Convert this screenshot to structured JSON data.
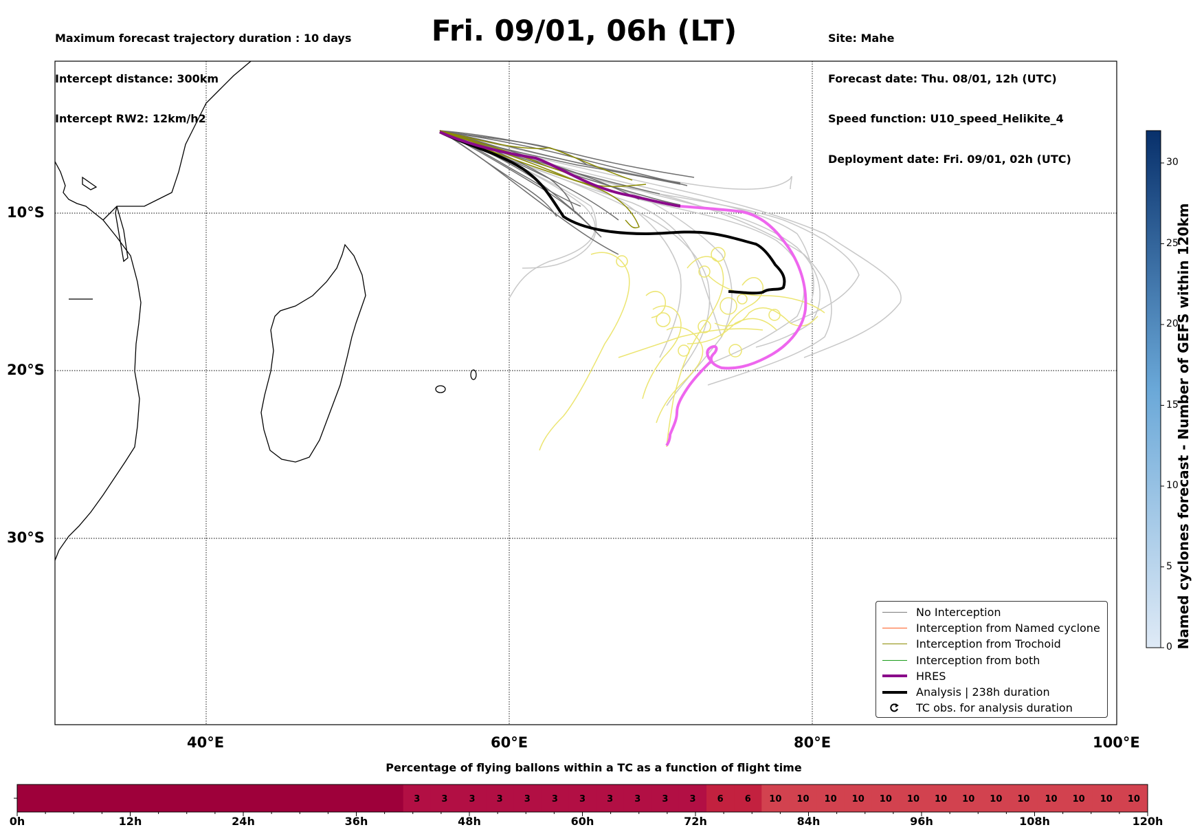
{
  "header": {
    "left_lines": [
      "Maximum forecast trajectory duration : 10 days",
      "Intercept distance: 300km",
      "Intercept RW2: 12km/h2"
    ],
    "title": "Fri. 09/01, 06h (LT)",
    "right_lines": [
      "Site: Mahe",
      "Forecast date: Thu. 08/01, 12h (UTC)",
      "Speed function: U10_speed_Helikite_4",
      "Deployment date: Fri. 09/01, 02h (UTC)"
    ]
  },
  "map": {
    "lat_labels": [
      "10°S",
      "20°S",
      "30°S"
    ],
    "lon_labels": [
      "40°E",
      "60°E",
      "80°E",
      "100°E"
    ]
  },
  "legend": {
    "items": [
      {
        "label": "No Interception",
        "color": "#7a7a7a",
        "kind": "line-thin"
      },
      {
        "label": "Interception from Named cyclone",
        "color": "#ff5a1f",
        "kind": "line-thin"
      },
      {
        "label": "Interception from Trochoid",
        "color": "#8b8b00",
        "kind": "line-thin"
      },
      {
        "label": "Interception from both",
        "color": "#1a9c1a",
        "kind": "line-thin"
      },
      {
        "label": "HRES",
        "color": "#8a0a8a",
        "kind": "line-thick"
      },
      {
        "label": "Analysis | 238h duration",
        "color": "#000000",
        "kind": "line-thick"
      },
      {
        "label": "TC obs. for analysis duration",
        "color": "#000000",
        "kind": "marker",
        "icon": "cyclone-symbol-icon"
      }
    ]
  },
  "colorbar": {
    "label": "Named cyclones forecast - Number of GEFS within 120km",
    "ticks": [
      0,
      5,
      10,
      15,
      20,
      25,
      30
    ],
    "max": 32,
    "color_low": "#dfeaf6",
    "color_high": "#08306b"
  },
  "timeline": {
    "title": "Percentage of flying ballons within a TC as a function of flight time",
    "tick_labels": [
      "0h",
      "12h",
      "24h",
      "36h",
      "48h",
      "60h",
      "72h",
      "84h",
      "96h",
      "108h",
      "120h"
    ],
    "cells": [
      {
        "value": "",
        "pct": 0
      },
      {
        "value": "",
        "pct": 0
      },
      {
        "value": "",
        "pct": 0
      },
      {
        "value": "",
        "pct": 0
      },
      {
        "value": "",
        "pct": 0
      },
      {
        "value": "",
        "pct": 0
      },
      {
        "value": "",
        "pct": 0
      },
      {
        "value": "",
        "pct": 0
      },
      {
        "value": "",
        "pct": 0
      },
      {
        "value": "",
        "pct": 0
      },
      {
        "value": "",
        "pct": 0
      },
      {
        "value": "",
        "pct": 0
      },
      {
        "value": "",
        "pct": 0
      },
      {
        "value": "",
        "pct": 0
      },
      {
        "value": "3",
        "pct": 3
      },
      {
        "value": "3",
        "pct": 3
      },
      {
        "value": "3",
        "pct": 3
      },
      {
        "value": "3",
        "pct": 3
      },
      {
        "value": "3",
        "pct": 3
      },
      {
        "value": "3",
        "pct": 3
      },
      {
        "value": "3",
        "pct": 3
      },
      {
        "value": "3",
        "pct": 3
      },
      {
        "value": "3",
        "pct": 3
      },
      {
        "value": "3",
        "pct": 3
      },
      {
        "value": "3",
        "pct": 3
      },
      {
        "value": "6",
        "pct": 6
      },
      {
        "value": "6",
        "pct": 6
      },
      {
        "value": "10",
        "pct": 10
      },
      {
        "value": "10",
        "pct": 10
      },
      {
        "value": "10",
        "pct": 10
      },
      {
        "value": "10",
        "pct": 10
      },
      {
        "value": "10",
        "pct": 10
      },
      {
        "value": "10",
        "pct": 10
      },
      {
        "value": "10",
        "pct": 10
      },
      {
        "value": "10",
        "pct": 10
      },
      {
        "value": "10",
        "pct": 10
      },
      {
        "value": "10",
        "pct": 10
      },
      {
        "value": "10",
        "pct": 10
      },
      {
        "value": "10",
        "pct": 10
      },
      {
        "value": "10",
        "pct": 10
      },
      {
        "value": "10",
        "pct": 10
      }
    ],
    "colors": {
      "0": "#9e003a",
      "3": "#b20f44",
      "6": "#c3213f",
      "10": "#d2424f"
    }
  }
}
